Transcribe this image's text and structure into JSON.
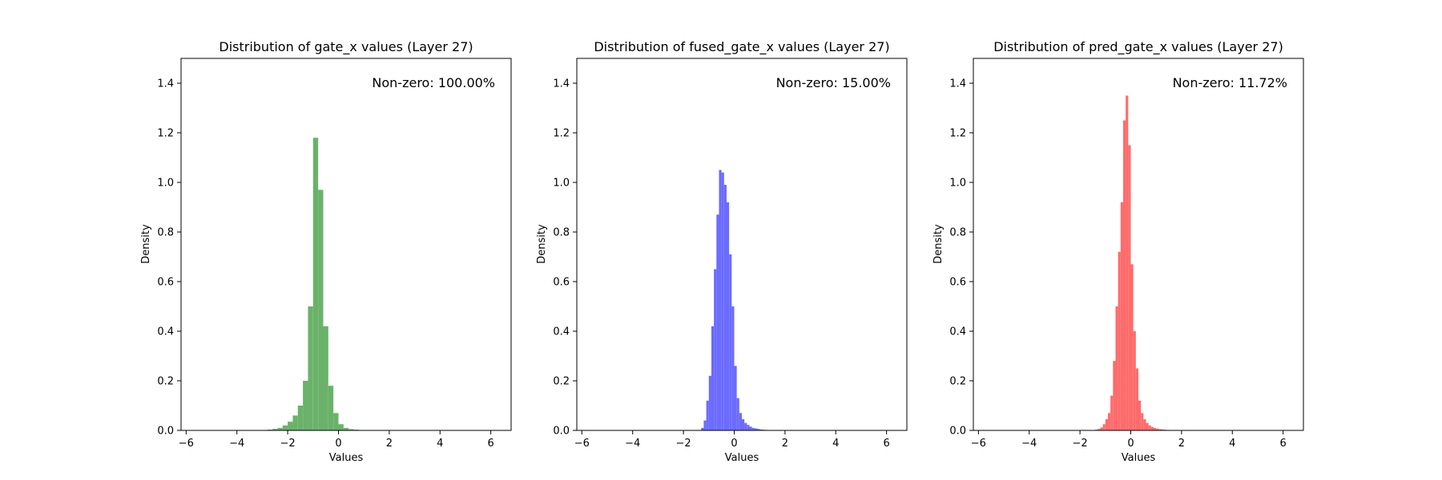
{
  "figure": {
    "background": "#ffffff"
  },
  "chart_data": [
    {
      "type": "bar",
      "title": "Distribution of gate_x values (Layer 27)",
      "xlabel": "Values",
      "ylabel": "Density",
      "annotation": "Non-zero: 100.00%",
      "annotation_position": "top-right",
      "color": "#6ab26a",
      "xlim": [
        -6.2,
        6.8
      ],
      "ylim": [
        0,
        1.5
      ],
      "xticks": [
        -6,
        -4,
        -2,
        0,
        2,
        4,
        6
      ],
      "xtick_labels": [
        "−6",
        "−4",
        "−2",
        "0",
        "2",
        "4",
        "6"
      ],
      "yticks": [
        0.0,
        0.2,
        0.4,
        0.6,
        0.8,
        1.0,
        1.2,
        1.4
      ],
      "ytick_labels": [
        "0.0",
        "0.2",
        "0.4",
        "0.6",
        "0.8",
        "1.0",
        "1.2",
        "1.4"
      ],
      "grid": false,
      "bin_width": 0.2,
      "x": [
        -2.8,
        -2.6,
        -2.4,
        -2.2,
        -2.0,
        -1.8,
        -1.6,
        -1.4,
        -1.2,
        -1.0,
        -0.8,
        -0.6,
        -0.4,
        -0.2,
        0.0,
        0.2,
        0.4,
        0.6,
        0.8
      ],
      "values": [
        0.003,
        0.006,
        0.01,
        0.02,
        0.035,
        0.06,
        0.1,
        0.2,
        0.5,
        1.18,
        0.97,
        0.42,
        0.18,
        0.07,
        0.025,
        0.01,
        0.005,
        0.003,
        0.001
      ]
    },
    {
      "type": "bar",
      "title": "Distribution of fused_gate_x values (Layer 27)",
      "xlabel": "Values",
      "ylabel": "Density",
      "annotation": "Non-zero: 15.00%",
      "annotation_position": "top-right",
      "color": "#6b6bff",
      "xlim": [
        -6.2,
        6.8
      ],
      "ylim": [
        0,
        1.5
      ],
      "xticks": [
        -6,
        -4,
        -2,
        0,
        2,
        4,
        6
      ],
      "xtick_labels": [
        "−6",
        "−4",
        "−2",
        "0",
        "2",
        "4",
        "6"
      ],
      "yticks": [
        0.0,
        0.2,
        0.4,
        0.6,
        0.8,
        1.0,
        1.2,
        1.4
      ],
      "ytick_labels": [
        "0.0",
        "0.2",
        "0.4",
        "0.6",
        "0.8",
        "1.0",
        "1.2",
        "1.4"
      ],
      "grid": false,
      "bin_width": 0.1,
      "x": [
        -1.3,
        -1.2,
        -1.1,
        -1.0,
        -0.9,
        -0.8,
        -0.7,
        -0.6,
        -0.5,
        -0.4,
        -0.3,
        -0.2,
        -0.1,
        0.0,
        0.1,
        0.2,
        0.3,
        0.4,
        0.5,
        0.6,
        0.7,
        0.8,
        0.9,
        1.0,
        1.1,
        1.2,
        1.3
      ],
      "values": [
        0.01,
        0.04,
        0.12,
        0.22,
        0.42,
        0.65,
        0.87,
        1.05,
        1.04,
        0.99,
        0.92,
        0.71,
        0.5,
        0.26,
        0.13,
        0.07,
        0.045,
        0.03,
        0.022,
        0.015,
        0.01,
        0.008,
        0.006,
        0.004,
        0.003,
        0.002,
        0.001
      ]
    },
    {
      "type": "bar",
      "title": "Distribution of pred_gate_x values (Layer 27)",
      "xlabel": "Values",
      "ylabel": "Density",
      "annotation": "Non-zero: 11.72%",
      "annotation_position": "top-right",
      "color": "#ff6b6b",
      "xlim": [
        -6.2,
        6.8
      ],
      "ylim": [
        0,
        1.5
      ],
      "xticks": [
        -6,
        -4,
        -2,
        0,
        2,
        4,
        6
      ],
      "xtick_labels": [
        "−6",
        "−4",
        "−2",
        "0",
        "2",
        "4",
        "6"
      ],
      "yticks": [
        0.0,
        0.2,
        0.4,
        0.6,
        0.8,
        1.0,
        1.2,
        1.4
      ],
      "ytick_labels": [
        "0.0",
        "0.2",
        "0.4",
        "0.6",
        "0.8",
        "1.0",
        "1.2",
        "1.4"
      ],
      "grid": false,
      "bin_width": 0.1,
      "x": [
        -1.4,
        -1.3,
        -1.2,
        -1.1,
        -1.0,
        -0.9,
        -0.8,
        -0.7,
        -0.6,
        -0.5,
        -0.4,
        -0.3,
        -0.2,
        -0.1,
        0.0,
        0.1,
        0.2,
        0.3,
        0.4,
        0.5,
        0.6,
        0.7,
        0.8,
        0.9,
        1.0,
        1.1,
        1.2,
        1.3,
        1.4
      ],
      "values": [
        0.003,
        0.006,
        0.012,
        0.025,
        0.045,
        0.07,
        0.14,
        0.28,
        0.5,
        0.72,
        0.92,
        1.25,
        1.35,
        1.15,
        0.67,
        0.4,
        0.25,
        0.12,
        0.07,
        0.045,
        0.03,
        0.02,
        0.014,
        0.01,
        0.007,
        0.005,
        0.004,
        0.003,
        0.002
      ]
    }
  ]
}
